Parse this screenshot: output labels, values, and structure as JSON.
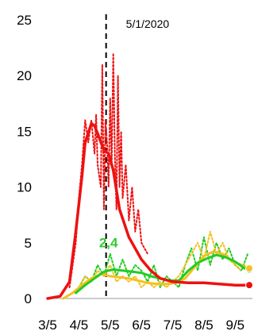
{
  "chart_data": {
    "type": "line",
    "x_labels": [
      "3/5",
      "4/5",
      "5/5",
      "6/5",
      "7/5",
      "8/5",
      "9/5"
    ],
    "x_label_values": [
      0,
      1,
      2,
      3,
      4,
      5,
      6
    ],
    "y_ticks": [
      0,
      5,
      10,
      15,
      20,
      25
    ],
    "ylim": [
      0,
      25
    ],
    "xlim": [
      0,
      6.55
    ],
    "grid": false,
    "annotations": [
      {
        "type": "vline",
        "x": 1.87,
        "label": "5/1/2020"
      },
      {
        "type": "data-label",
        "x": 1.9,
        "y": 4.6,
        "text": "2,4"
      }
    ],
    "series": [
      {
        "style": "smoothed",
        "color": "#ee1111",
        "x": [
          0,
          0.4,
          0.7,
          0.9,
          1.1,
          1.2,
          1.4,
          1.5,
          1.6,
          1.8,
          1.95,
          2.1,
          2.3,
          2.6,
          3.0,
          3.3,
          3.6,
          4.0,
          4.5,
          5.0,
          5.5,
          6.0,
          6.5
        ],
        "values": [
          0,
          0.2,
          1.5,
          6,
          11,
          14,
          15.7,
          15.5,
          14.8,
          13.3,
          13.0,
          11.5,
          8,
          5.5,
          3.5,
          2.5,
          1.8,
          1.5,
          1.4,
          1.4,
          1.3,
          1.2,
          1.2
        ]
      },
      {
        "style": "daily",
        "color": "#ee1111",
        "x": [
          0.7,
          0.9,
          1.0,
          1.1,
          1.2,
          1.3,
          1.4,
          1.5,
          1.55,
          1.6,
          1.7,
          1.75,
          1.8,
          1.85,
          1.9,
          1.95,
          2.0,
          2.05,
          2.1,
          2.15,
          2.2,
          2.25,
          2.3,
          2.35,
          2.4,
          2.5,
          2.6,
          2.7,
          2.8,
          2.9,
          3.0,
          3.2
        ],
        "values": [
          1,
          5,
          9,
          12,
          16,
          14,
          16,
          13,
          16.5,
          12,
          10,
          21,
          8,
          16,
          14,
          10,
          18,
          12,
          22,
          13,
          8,
          20,
          10,
          15,
          9,
          12,
          7,
          10,
          6,
          8,
          5,
          4
        ]
      },
      {
        "style": "smoothed",
        "color": "#22cc22",
        "x": [
          0.9,
          1.2,
          1.5,
          1.8,
          2.1,
          2.4,
          2.7,
          3.0,
          3.3,
          3.6,
          3.9,
          4.2,
          4.5,
          4.8,
          5.1,
          5.4,
          5.7,
          6.0,
          6.3,
          6.5
        ],
        "values": [
          0.5,
          1.2,
          1.8,
          2.4,
          2.6,
          2.5,
          2.4,
          2.3,
          2.0,
          1.8,
          1.6,
          1.6,
          2.5,
          3.2,
          3.6,
          3.9,
          3.7,
          3.3,
          2.7,
          2.6
        ]
      },
      {
        "style": "daily",
        "color": "#22cc22",
        "x": [
          1.0,
          1.2,
          1.4,
          1.6,
          1.8,
          2.0,
          2.2,
          2.4,
          2.6,
          2.8,
          3.0,
          3.2,
          3.4,
          3.6,
          3.8,
          4.0,
          4.2,
          4.4,
          4.6,
          4.8,
          5.0,
          5.2,
          5.4,
          5.6,
          5.8,
          6.0,
          6.2,
          6.4
        ],
        "values": [
          1,
          2,
          1.5,
          3,
          2,
          4,
          2,
          3.5,
          2,
          3,
          2.5,
          1.5,
          3,
          1,
          2,
          1.5,
          1,
          3,
          4.5,
          2.5,
          5.5,
          3,
          5,
          3.5,
          4.5,
          3,
          2.5,
          4
        ]
      },
      {
        "style": "smoothed",
        "color": "#f5c020",
        "x": [
          0.5,
          0.8,
          1.1,
          1.4,
          1.7,
          2.0,
          2.3,
          2.6,
          2.9,
          3.2,
          3.5,
          3.8,
          4.1,
          4.4,
          4.7,
          5.0,
          5.3,
          5.6,
          5.9,
          6.2,
          6.5
        ],
        "values": [
          0,
          0.5,
          1.2,
          1.8,
          2.2,
          2.0,
          1.9,
          1.8,
          1.6,
          1.4,
          1.3,
          1.3,
          1.4,
          1.8,
          2.8,
          3.8,
          4.2,
          4.0,
          3.4,
          3.0,
          2.7
        ]
      },
      {
        "style": "daily",
        "color": "#f5c020",
        "x": [
          0.8,
          1.0,
          1.2,
          1.4,
          1.6,
          1.8,
          2.0,
          2.2,
          2.4,
          2.6,
          2.8,
          3.0,
          3.2,
          3.4,
          3.6,
          3.8,
          4.0,
          4.2,
          4.4,
          4.6,
          4.8,
          5.0,
          5.2,
          5.4,
          5.6,
          5.8,
          6.0,
          6.2
        ],
        "values": [
          0.5,
          1,
          2,
          1.5,
          2.5,
          2,
          3,
          1.5,
          2,
          1.5,
          2,
          1,
          1.5,
          1,
          1.5,
          1,
          1.5,
          2,
          3,
          4,
          5,
          3.5,
          6,
          4,
          5,
          3.5,
          3,
          2.5
        ]
      }
    ],
    "end_markers": [
      {
        "x": 6.5,
        "y": 1.2,
        "color": "#ee1111"
      },
      {
        "x": 6.5,
        "y": 2.6,
        "color": "#22cc22"
      },
      {
        "x": 6.5,
        "y": 2.7,
        "color": "#f5c020"
      }
    ]
  }
}
